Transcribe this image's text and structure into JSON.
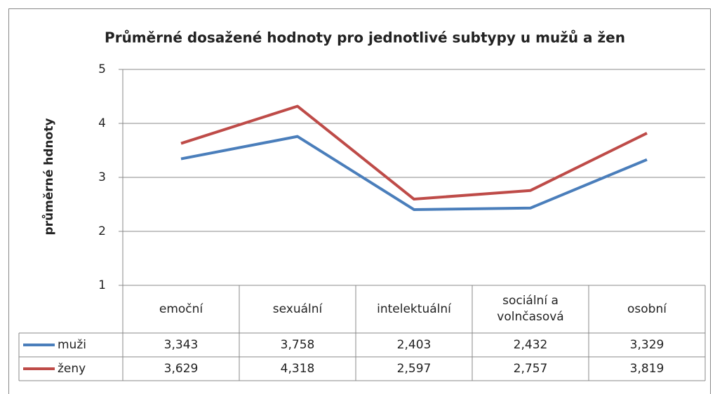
{
  "chart_data": {
    "type": "line",
    "title": "Průměrné dosažené hodnoty pro jednotlivé subtypy u mužů a žen",
    "y_label": "průměrné hdnoty",
    "categories": [
      "emoční",
      "sexuální",
      "intelektuální",
      "sociální a volnčasová",
      "osobní"
    ],
    "series": [
      {
        "name": "muži",
        "color": "#4a7ebb",
        "values": [
          3.343,
          3.758,
          2.403,
          2.432,
          3.329
        ],
        "value_labels": [
          "3,343",
          "3,758",
          "2,403",
          "2,432",
          "3,329"
        ]
      },
      {
        "name": "ženy",
        "color": "#be4b48",
        "values": [
          3.629,
          4.318,
          2.597,
          2.757,
          3.819
        ],
        "value_labels": [
          "3,629",
          "4,318",
          "2,597",
          "2,757",
          "3,819"
        ]
      }
    ],
    "ylim": [
      1,
      5
    ],
    "yticks": [
      1,
      2,
      3,
      4,
      5
    ],
    "grid": true
  }
}
